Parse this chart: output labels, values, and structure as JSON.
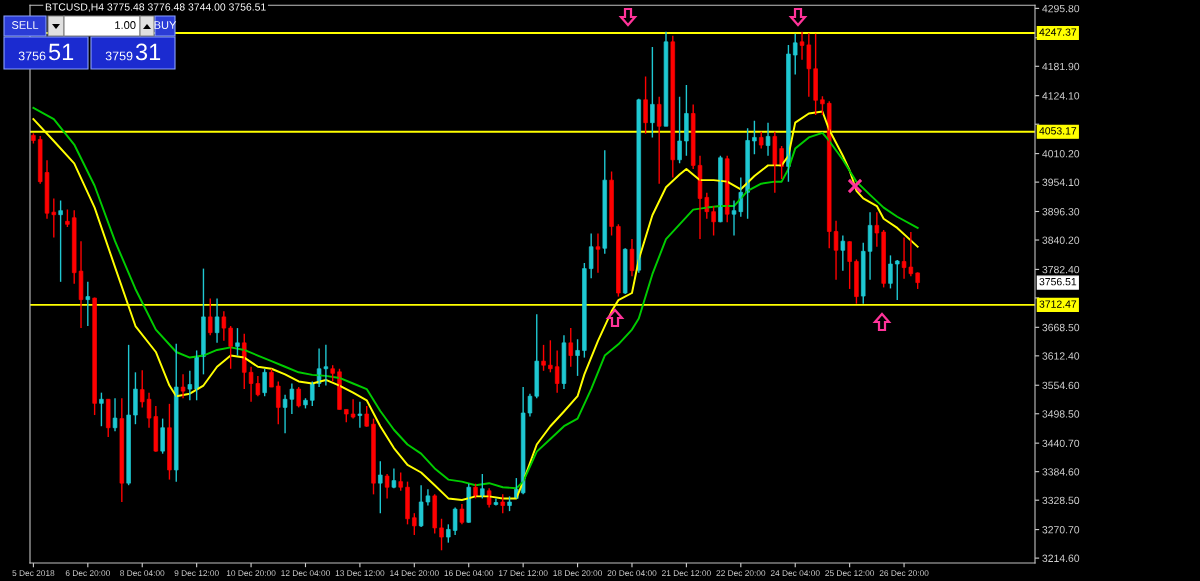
{
  "chart_data": {
    "type": "candlestick",
    "title": "BTCUSD,H4 3775.48 3776.48 3744.00 3756.51",
    "x": [
      "2018-12-05T12:00",
      "2018-12-05T16:00",
      "2018-12-05T20:00",
      "2018-12-06T00:00",
      "2018-12-06T04:00",
      "2018-12-06T08:00",
      "2018-12-06T12:00",
      "2018-12-06T16:00",
      "2018-12-06T20:00",
      "2018-12-07T00:00",
      "2018-12-07T04:00",
      "2018-12-07T08:00",
      "2018-12-07T12:00",
      "2018-12-07T16:00",
      "2018-12-07T20:00",
      "2018-12-08T00:00",
      "2018-12-08T04:00",
      "2018-12-08T08:00",
      "2018-12-08T12:00",
      "2018-12-08T16:00",
      "2018-12-08T20:00",
      "2018-12-09T00:00",
      "2018-12-09T04:00",
      "2018-12-09T08:00",
      "2018-12-09T12:00",
      "2018-12-09T16:00",
      "2018-12-09T20:00",
      "2018-12-10T00:00",
      "2018-12-10T04:00",
      "2018-12-10T08:00",
      "2018-12-10T12:00",
      "2018-12-10T16:00",
      "2018-12-10T20:00",
      "2018-12-11T00:00",
      "2018-12-11T04:00",
      "2018-12-11T08:00",
      "2018-12-11T12:00",
      "2018-12-11T16:00",
      "2018-12-11T20:00",
      "2018-12-12T00:00",
      "2018-12-12T04:00",
      "2018-12-12T08:00",
      "2018-12-12T12:00",
      "2018-12-12T16:00",
      "2018-12-12T20:00",
      "2018-12-13T00:00",
      "2018-12-13T04:00",
      "2018-12-13T08:00",
      "2018-12-13T12:00",
      "2018-12-13T16:00",
      "2018-12-13T20:00",
      "2018-12-14T00:00",
      "2018-12-14T04:00",
      "2018-12-14T08:00",
      "2018-12-14T12:00",
      "2018-12-14T16:00",
      "2018-12-14T20:00",
      "2018-12-15T00:00",
      "2018-12-15T04:00",
      "2018-12-15T08:00",
      "2018-12-15T12:00",
      "2018-12-15T16:00",
      "2018-12-15T20:00",
      "2018-12-16T00:00",
      "2018-12-16T04:00",
      "2018-12-16T08:00",
      "2018-12-16T12:00",
      "2018-12-16T16:00",
      "2018-12-16T20:00",
      "2018-12-17T00:00",
      "2018-12-17T04:00",
      "2018-12-17T08:00",
      "2018-12-17T12:00",
      "2018-12-17T16:00",
      "2018-12-17T20:00",
      "2018-12-18T00:00",
      "2018-12-18T04:00",
      "2018-12-18T08:00",
      "2018-12-18T12:00",
      "2018-12-18T16:00",
      "2018-12-18T20:00",
      "2018-12-19T00:00",
      "2018-12-19T04:00",
      "2018-12-19T08:00",
      "2018-12-19T12:00",
      "2018-12-19T16:00",
      "2018-12-19T20:00",
      "2018-12-20T00:00",
      "2018-12-20T04:00",
      "2018-12-20T08:00",
      "2018-12-20T12:00",
      "2018-12-20T16:00",
      "2018-12-20T20:00",
      "2018-12-21T00:00",
      "2018-12-21T04:00",
      "2018-12-21T08:00",
      "2018-12-21T12:00",
      "2018-12-21T16:00",
      "2018-12-21T20:00",
      "2018-12-22T00:00",
      "2018-12-22T04:00",
      "2018-12-22T08:00",
      "2018-12-22T12:00",
      "2018-12-22T16:00",
      "2018-12-22T20:00",
      "2018-12-23T00:00",
      "2018-12-23T04:00",
      "2018-12-23T08:00",
      "2018-12-23T12:00",
      "2018-12-23T16:00",
      "2018-12-23T20:00",
      "2018-12-24T00:00",
      "2018-12-24T04:00",
      "2018-12-24T08:00",
      "2018-12-24T12:00",
      "2018-12-24T16:00",
      "2018-12-24T20:00",
      "2018-12-25T00:00",
      "2018-12-25T04:00",
      "2018-12-25T08:00",
      "2018-12-25T12:00",
      "2018-12-25T16:00",
      "2018-12-25T20:00",
      "2018-12-26T00:00",
      "2018-12-26T04:00",
      "2018-12-26T08:00",
      "2018-12-26T12:00",
      "2018-12-26T16:00",
      "2018-12-26T20:00",
      "2018-12-27T00:00",
      "2018-12-27T04:00"
    ],
    "ohlc": [
      [
        4046,
        4050,
        4030,
        4036
      ],
      [
        4038,
        4045,
        3951,
        3955
      ],
      [
        3973,
        3997,
        3882,
        3893
      ],
      [
        3895,
        3922,
        3845,
        3890
      ],
      [
        3890,
        3918,
        3758,
        3898
      ],
      [
        3877,
        3900,
        3866,
        3871
      ],
      [
        3884,
        3899,
        3754,
        3776
      ],
      [
        3779,
        3838,
        3667,
        3723
      ],
      [
        3723,
        3758,
        3671,
        3729
      ],
      [
        3726,
        3727,
        3496,
        3519
      ],
      [
        3519,
        3540,
        3474,
        3527
      ],
      [
        3527,
        3527,
        3453,
        3471
      ],
      [
        3471,
        3529,
        3464,
        3490
      ],
      [
        3489,
        3529,
        3325,
        3362
      ],
      [
        3362,
        3634,
        3358,
        3496
      ],
      [
        3496,
        3580,
        3478,
        3547
      ],
      [
        3546,
        3584,
        3511,
        3522
      ],
      [
        3527,
        3540,
        3471,
        3490
      ],
      [
        3493,
        3514,
        3424,
        3425
      ],
      [
        3425,
        3489,
        3420,
        3471
      ],
      [
        3471,
        3518,
        3369,
        3388
      ],
      [
        3388,
        3636,
        3365,
        3551
      ],
      [
        3551,
        3576,
        3529,
        3543
      ],
      [
        3547,
        3583,
        3525,
        3556
      ],
      [
        3547,
        3623,
        3525,
        3611
      ],
      [
        3611,
        3784,
        3576,
        3689
      ],
      [
        3689,
        3725,
        3653,
        3658
      ],
      [
        3658,
        3725,
        3638,
        3689
      ],
      [
        3689,
        3700,
        3642,
        3667
      ],
      [
        3667,
        3671,
        3587,
        3631
      ],
      [
        3631,
        3667,
        3613,
        3638
      ],
      [
        3638,
        3656,
        3547,
        3580
      ],
      [
        3580,
        3591,
        3522,
        3558
      ],
      [
        3558,
        3573,
        3533,
        3536
      ],
      [
        3540,
        3587,
        3533,
        3580
      ],
      [
        3580,
        3587,
        3551,
        3551
      ],
      [
        3553,
        3562,
        3478,
        3511
      ],
      [
        3511,
        3536,
        3460,
        3527
      ],
      [
        3527,
        3558,
        3498,
        3547
      ],
      [
        3547,
        3551,
        3511,
        3514
      ],
      [
        3516,
        3529,
        3509,
        3525
      ],
      [
        3525,
        3562,
        3514,
        3558
      ],
      [
        3558,
        3627,
        3551,
        3587
      ],
      [
        3587,
        3634,
        3554,
        3591
      ],
      [
        3587,
        3594,
        3562,
        3578
      ],
      [
        3581,
        3587,
        3507,
        3507
      ],
      [
        3507,
        3507,
        3482,
        3498
      ],
      [
        3498,
        3527,
        3489,
        3492
      ],
      [
        3495,
        3522,
        3471,
        3498
      ],
      [
        3498,
        3514,
        3473,
        3474
      ],
      [
        3478,
        3489,
        3340,
        3362
      ],
      [
        3362,
        3405,
        3303,
        3378
      ],
      [
        3376,
        3380,
        3332,
        3354
      ],
      [
        3354,
        3391,
        3352,
        3367
      ],
      [
        3365,
        3383,
        3347,
        3354
      ],
      [
        3354,
        3365,
        3281,
        3292
      ],
      [
        3294,
        3303,
        3260,
        3278
      ],
      [
        3278,
        3358,
        3276,
        3325
      ],
      [
        3325,
        3350,
        3318,
        3337
      ],
      [
        3337,
        3340,
        3263,
        3274
      ],
      [
        3274,
        3292,
        3230,
        3256
      ],
      [
        3256,
        3281,
        3245,
        3271
      ],
      [
        3269,
        3314,
        3260,
        3311
      ],
      [
        3311,
        3321,
        3281,
        3285
      ],
      [
        3285,
        3361,
        3284,
        3354
      ],
      [
        3354,
        3361,
        3332,
        3336
      ],
      [
        3336,
        3380,
        3332,
        3351
      ],
      [
        3347,
        3352,
        3314,
        3320
      ],
      [
        3320,
        3332,
        3318,
        3324
      ],
      [
        3325,
        3340,
        3303,
        3318
      ],
      [
        3318,
        3336,
        3307,
        3325
      ],
      [
        3332,
        3372,
        3332,
        3350
      ],
      [
        3343,
        3551,
        3340,
        3500
      ],
      [
        3500,
        3538,
        3493,
        3533
      ],
      [
        3533,
        3694,
        3529,
        3602
      ],
      [
        3602,
        3634,
        3583,
        3594
      ],
      [
        3594,
        3643,
        3580,
        3587
      ],
      [
        3591,
        3623,
        3540,
        3558
      ],
      [
        3558,
        3653,
        3547,
        3638
      ],
      [
        3638,
        3667,
        3591,
        3613
      ],
      [
        3613,
        3645,
        3573,
        3623
      ],
      [
        3623,
        3795,
        3609,
        3784
      ],
      [
        3784,
        3853,
        3765,
        3827
      ],
      [
        3827,
        3853,
        3776,
        3822
      ],
      [
        3824,
        4017,
        3813,
        3958
      ],
      [
        3958,
        3975,
        3849,
        3867
      ],
      [
        3867,
        3871,
        3729,
        3736
      ],
      [
        3736,
        3824,
        3734,
        3822
      ],
      [
        3822,
        3842,
        3769,
        3780
      ],
      [
        3781,
        4118,
        3776,
        4116
      ],
      [
        4116,
        4162,
        4049,
        4071
      ],
      [
        4071,
        4220,
        4042,
        4107
      ],
      [
        4107,
        4122,
        3951,
        4064
      ],
      [
        4064,
        4250,
        4064,
        4230
      ],
      [
        4230,
        4242,
        3963,
        3998
      ],
      [
        3998,
        4122,
        3991,
        4035
      ],
      [
        4035,
        4145,
        4006,
        4089
      ],
      [
        4089,
        4107,
        3980,
        3987
      ],
      [
        3987,
        4006,
        3842,
        3922
      ],
      [
        3924,
        3933,
        3882,
        3896
      ],
      [
        3896,
        3907,
        3849,
        3876
      ],
      [
        3876,
        4006,
        3875,
        4002
      ],
      [
        4000,
        4006,
        3875,
        3891
      ],
      [
        3891,
        3918,
        3849,
        3898
      ],
      [
        3896,
        3963,
        3886,
        3934
      ],
      [
        3934,
        4060,
        3882,
        4036
      ],
      [
        4035,
        4075,
        4009,
        4042
      ],
      [
        4042,
        4053,
        4020,
        4027
      ],
      [
        4026,
        4071,
        4006,
        4044
      ],
      [
        4044,
        4053,
        3933,
        3987
      ],
      [
        4020,
        4025,
        3960,
        3985
      ],
      [
        3985,
        4224,
        3955,
        4206
      ],
      [
        4204,
        4246,
        4166,
        4228
      ],
      [
        4230,
        4250,
        4195,
        4223
      ],
      [
        4224,
        4247,
        4122,
        4177
      ],
      [
        4177,
        4246,
        4086,
        4115
      ],
      [
        4116,
        4123,
        4086,
        4108
      ],
      [
        4109,
        4113,
        3824,
        3857
      ],
      [
        3857,
        3878,
        3762,
        3820
      ],
      [
        3820,
        3849,
        3780,
        3838
      ],
      [
        3837,
        3838,
        3744,
        3798
      ],
      [
        3798,
        3802,
        3715,
        3729
      ],
      [
        3730,
        3835,
        3715,
        3818
      ],
      [
        3818,
        3895,
        3762,
        3869
      ],
      [
        3869,
        3895,
        3827,
        3854
      ],
      [
        3856,
        3860,
        3747,
        3755
      ],
      [
        3755,
        3810,
        3745,
        3793
      ],
      [
        3793,
        3801,
        3722,
        3799
      ],
      [
        3798,
        3845,
        3764,
        3786
      ],
      [
        3787,
        3856,
        3769,
        3774
      ],
      [
        3775.48,
        3776.48,
        3744.0,
        3756.51
      ]
    ],
    "colors": [
      "#ff0000",
      "#ff0000",
      "#ff0000",
      "#ff0000",
      "#1fc8d2",
      "#ff0000",
      "#ff0000",
      "#ff0000",
      "#1fc8d2",
      "#ff0000",
      "#1fc8d2",
      "#ff0000",
      "#1fc8d2",
      "#ff0000",
      "#1fc8d2",
      "#1fc8d2",
      "#ff0000",
      "#ff0000",
      "#ff0000",
      "#1fc8d2",
      "#ff0000",
      "#1fc8d2",
      "#ff0000",
      "#1fc8d2",
      "#1fc8d2",
      "#1fc8d2",
      "#ff0000",
      "#1fc8d2",
      "#ff0000",
      "#ff0000",
      "#1fc8d2",
      "#ff0000",
      "#ff0000",
      "#ff0000",
      "#1fc8d2",
      "#ff0000",
      "#ff0000",
      "#1fc8d2",
      "#1fc8d2",
      "#ff0000",
      "#1fc8d2",
      "#1fc8d2",
      "#1fc8d2",
      "#1fc8d2",
      "#ff0000",
      "#ff0000",
      "#ff0000",
      "#ff0000",
      "#1fc8d2",
      "#ff0000",
      "#ff0000",
      "#1fc8d2",
      "#ff0000",
      "#1fc8d2",
      "#ff0000",
      "#ff0000",
      "#ff0000",
      "#1fc8d2",
      "#1fc8d2",
      "#ff0000",
      "#ff0000",
      "#1fc8d2",
      "#1fc8d2",
      "#ff0000",
      "#1fc8d2",
      "#ff0000",
      "#1fc8d2",
      "#ff0000",
      "#1fc8d2",
      "#ff0000",
      "#1fc8d2",
      "#1fc8d2",
      "#1fc8d2",
      "#1fc8d2",
      "#1fc8d2",
      "#ff0000",
      "#ff0000",
      "#ff0000",
      "#1fc8d2",
      "#ff0000",
      "#1fc8d2",
      "#1fc8d2",
      "#1fc8d2",
      "#ff0000",
      "#1fc8d2",
      "#ff0000",
      "#ff0000",
      "#1fc8d2",
      "#ff0000",
      "#1fc8d2",
      "#ff0000",
      "#1fc8d2",
      "#ff0000",
      "#1fc8d2",
      "#ff0000",
      "#1fc8d2",
      "#1fc8d2",
      "#ff0000",
      "#ff0000",
      "#ff0000",
      "#ff0000",
      "#1fc8d2",
      "#ff0000",
      "#1fc8d2",
      "#1fc8d2",
      "#1fc8d2",
      "#1fc8d2",
      "#ff0000",
      "#1fc8d2",
      "#ff0000",
      "#ff0000",
      "#1fc8d2",
      "#1fc8d2",
      "#ff0000",
      "#ff0000",
      "#ff0000",
      "#ff0000",
      "#ff0000",
      "#ff0000",
      "#1fc8d2",
      "#ff0000",
      "#ff0000",
      "#1fc8d2",
      "#1fc8d2",
      "#ff0000",
      "#ff0000",
      "#1fc8d2",
      "#1fc8d2",
      "#ff0000",
      "#ff0000",
      "#ff0000"
    ],
    "series": [
      {
        "type": "line",
        "color": "#ffff00",
        "x": [
          "2018-12-05T12:00",
          "2018-12-06T00:00",
          "2018-12-06T12:00",
          "2018-12-07T00:00",
          "2018-12-07T12:00",
          "2018-12-08T00:00",
          "2018-12-08T12:00",
          "2018-12-08T20:00",
          "2018-12-09T00:00",
          "2018-12-09T08:00",
          "2018-12-09T16:00",
          "2018-12-10T00:00",
          "2018-12-10T08:00",
          "2018-12-10T16:00",
          "2018-12-11T00:00",
          "2018-12-11T08:00",
          "2018-12-11T16:00",
          "2018-12-12T00:00",
          "2018-12-12T08:00",
          "2018-12-12T16:00",
          "2018-12-13T00:00",
          "2018-12-13T08:00",
          "2018-12-13T16:00",
          "2018-12-14T00:00",
          "2018-12-14T08:00",
          "2018-12-14T16:00",
          "2018-12-15T00:00",
          "2018-12-15T08:00",
          "2018-12-15T16:00",
          "2018-12-16T00:00",
          "2018-12-16T08:00",
          "2018-12-16T16:00",
          "2018-12-17T00:00",
          "2018-12-17T08:00",
          "2018-12-17T12:00",
          "2018-12-17T20:00",
          "2018-12-18T04:00",
          "2018-12-18T12:00",
          "2018-12-18T20:00",
          "2018-12-19T00:00",
          "2018-12-19T08:00",
          "2018-12-19T16:00",
          "2018-12-19T20:00",
          "2018-12-20T04:00",
          "2018-12-20T08:00",
          "2018-12-20T16:00",
          "2018-12-21T00:00",
          "2018-12-21T08:00",
          "2018-12-21T12:00",
          "2018-12-21T20:00",
          "2018-12-22T04:00",
          "2018-12-22T12:00",
          "2018-12-22T20:00",
          "2018-12-23T04:00",
          "2018-12-23T12:00",
          "2018-12-23T20:00",
          "2018-12-24T00:00",
          "2018-12-24T04:00",
          "2018-12-24T12:00",
          "2018-12-24T20:00",
          "2018-12-25T00:00",
          "2018-12-25T08:00",
          "2018-12-25T12:00",
          "2018-12-25T16:00",
          "2018-12-25T20:00",
          "2018-12-26T04:00",
          "2018-12-26T08:00",
          "2018-12-26T16:00",
          "2018-12-27T04:00"
        ],
        "values": [
          4078,
          4035,
          3991,
          3904,
          3787,
          3671,
          3620,
          3554,
          3533,
          3538,
          3554,
          3591,
          3613,
          3609,
          3591,
          3587,
          3576,
          3562,
          3558,
          3565,
          3554,
          3540,
          3525,
          3474,
          3431,
          3398,
          3383,
          3358,
          3332,
          3329,
          3336,
          3336,
          3332,
          3332,
          3365,
          3438,
          3474,
          3503,
          3533,
          3576,
          3642,
          3700,
          3722,
          3736,
          3802,
          3889,
          3944,
          3969,
          3980,
          3958,
          3958,
          3955,
          3940,
          3966,
          3987,
          3987,
          4006,
          4071,
          4089,
          4093,
          4057,
          4006,
          3977,
          3937,
          3922,
          3907,
          3882,
          3864,
          3827
        ]
      },
      {
        "type": "line",
        "color": "#00cc00",
        "x": [
          "2018-12-05T12:00",
          "2018-12-06T00:00",
          "2018-12-06T12:00",
          "2018-12-07T00:00",
          "2018-12-07T12:00",
          "2018-12-08T00:00",
          "2018-12-08T12:00",
          "2018-12-09T00:00",
          "2018-12-09T08:00",
          "2018-12-09T16:00",
          "2018-12-10T00:00",
          "2018-12-10T08:00",
          "2018-12-10T16:00",
          "2018-12-11T00:00",
          "2018-12-11T08:00",
          "2018-12-11T16:00",
          "2018-12-12T00:00",
          "2018-12-12T08:00",
          "2018-12-12T16:00",
          "2018-12-13T00:00",
          "2018-12-13T08:00",
          "2018-12-13T16:00",
          "2018-12-14T00:00",
          "2018-12-14T08:00",
          "2018-12-14T16:00",
          "2018-12-15T00:00",
          "2018-12-15T08:00",
          "2018-12-15T16:00",
          "2018-12-16T00:00",
          "2018-12-16T08:00",
          "2018-12-16T16:00",
          "2018-12-17T00:00",
          "2018-12-17T08:00",
          "2018-12-17T12:00",
          "2018-12-17T20:00",
          "2018-12-18T04:00",
          "2018-12-18T12:00",
          "2018-12-18T20:00",
          "2018-12-19T04:00",
          "2018-12-19T12:00",
          "2018-12-19T20:00",
          "2018-12-20T04:00",
          "2018-12-20T08:00",
          "2018-12-20T16:00",
          "2018-12-21T00:00",
          "2018-12-21T08:00",
          "2018-12-21T16:00",
          "2018-12-22T00:00",
          "2018-12-22T08:00",
          "2018-12-22T16:00",
          "2018-12-23T00:00",
          "2018-12-23T08:00",
          "2018-12-23T16:00",
          "2018-12-23T20:00",
          "2018-12-24T00:00",
          "2018-12-24T04:00",
          "2018-12-24T12:00",
          "2018-12-24T20:00",
          "2018-12-25T00:00",
          "2018-12-25T08:00",
          "2018-12-25T16:00",
          "2018-12-26T00:00",
          "2018-12-26T08:00",
          "2018-12-26T16:00",
          "2018-12-27T04:00"
        ],
        "values": [
          4100,
          4078,
          4028,
          3947,
          3838,
          3744,
          3664,
          3620,
          3609,
          3613,
          3624,
          3629,
          3624,
          3613,
          3602,
          3591,
          3580,
          3575,
          3573,
          3569,
          3558,
          3547,
          3504,
          3467,
          3438,
          3420,
          3391,
          3369,
          3365,
          3358,
          3362,
          3354,
          3352,
          3365,
          3424,
          3449,
          3474,
          3489,
          3547,
          3613,
          3635,
          3664,
          3686,
          3773,
          3842,
          3871,
          3900,
          3904,
          3907,
          3907,
          3937,
          3951,
          3955,
          3955,
          3980,
          4020,
          4042,
          4051,
          4035,
          3998,
          3955,
          3929,
          3904,
          3886,
          3864
        ]
      }
    ],
    "xlim": [
      "2018-12-05T10:00",
      "2018-12-30T01:00"
    ],
    "xticks": [
      {
        "value": "2018-12-05T12:00",
        "label": "5 Dec 2018"
      },
      {
        "value": "2018-12-06T20:00",
        "label": "6 Dec 20:00"
      },
      {
        "value": "2018-12-08T04:00",
        "label": "8 Dec 04:00"
      },
      {
        "value": "2018-12-09T12:00",
        "label": "9 Dec 12:00"
      },
      {
        "value": "2018-12-10T20:00",
        "label": "10 Dec 20:00"
      },
      {
        "value": "2018-12-12T04:00",
        "label": "12 Dec 04:00"
      },
      {
        "value": "2018-12-13T12:00",
        "label": "13 Dec 12:00"
      },
      {
        "value": "2018-12-14T20:00",
        "label": "14 Dec 20:00"
      },
      {
        "value": "2018-12-16T04:00",
        "label": "16 Dec 04:00"
      },
      {
        "value": "2018-12-17T12:00",
        "label": "17 Dec 12:00"
      },
      {
        "value": "2018-12-18T20:00",
        "label": "18 Dec 20:00"
      },
      {
        "value": "2018-12-20T04:00",
        "label": "20 Dec 04:00"
      },
      {
        "value": "2018-12-21T12:00",
        "label": "21 Dec 12:00"
      },
      {
        "value": "2018-12-22T20:00",
        "label": "22 Dec 20:00"
      },
      {
        "value": "2018-12-24T04:00",
        "label": "24 Dec 04:00"
      },
      {
        "value": "2018-12-25T12:00",
        "label": "25 Dec 12:00"
      },
      {
        "value": "2018-12-26T20:00",
        "label": "26 Dec 20:00"
      }
    ],
    "ylim": [
      3205,
      4302
    ],
    "yticks": [
      {
        "value": 4295.8,
        "label": "4295.80"
      },
      {
        "value": 4238.0,
        "label": null
      },
      {
        "value": 4181.9,
        "label": "4181.90"
      },
      {
        "value": 4124.1,
        "label": "4124.10"
      },
      {
        "value": 4068.0,
        "label": null
      },
      {
        "value": 4010.2,
        "label": "4010.20"
      },
      {
        "value": 3954.1,
        "label": "3954.10"
      },
      {
        "value": 3896.3,
        "label": "3896.30"
      },
      {
        "value": 3840.2,
        "label": "3840.20"
      },
      {
        "value": 3782.4,
        "label": "3782.40"
      },
      {
        "value": 3726.3,
        "label": null
      },
      {
        "value": 3668.5,
        "label": "3668.50"
      },
      {
        "value": 3612.4,
        "label": "3612.40"
      },
      {
        "value": 3554.6,
        "label": "3554.60"
      },
      {
        "value": 3498.5,
        "label": "3498.50"
      },
      {
        "value": 3440.7,
        "label": "3440.70"
      },
      {
        "value": 3384.6,
        "label": "3384.60"
      },
      {
        "value": 3328.5,
        "label": "3328.50"
      },
      {
        "value": 3270.7,
        "label": "3270.70"
      },
      {
        "value": 3214.6,
        "label": "3214.60"
      }
    ],
    "ref_lines": [
      {
        "axis": "y",
        "value": 4247.37,
        "label": "4247.37",
        "color": "#ffff00"
      },
      {
        "axis": "y",
        "value": 4053.17,
        "label": "4053.17",
        "color": "#ffff00"
      },
      {
        "axis": "y",
        "value": 3712.47,
        "label": "3712.47",
        "color": "#ffff00"
      }
    ],
    "annotations": [
      "SELL",
      "1.00",
      "BUY",
      "3756",
      "51",
      "3759",
      "31",
      "3756.51"
    ],
    "grid": false,
    "legend": false
  }
}
